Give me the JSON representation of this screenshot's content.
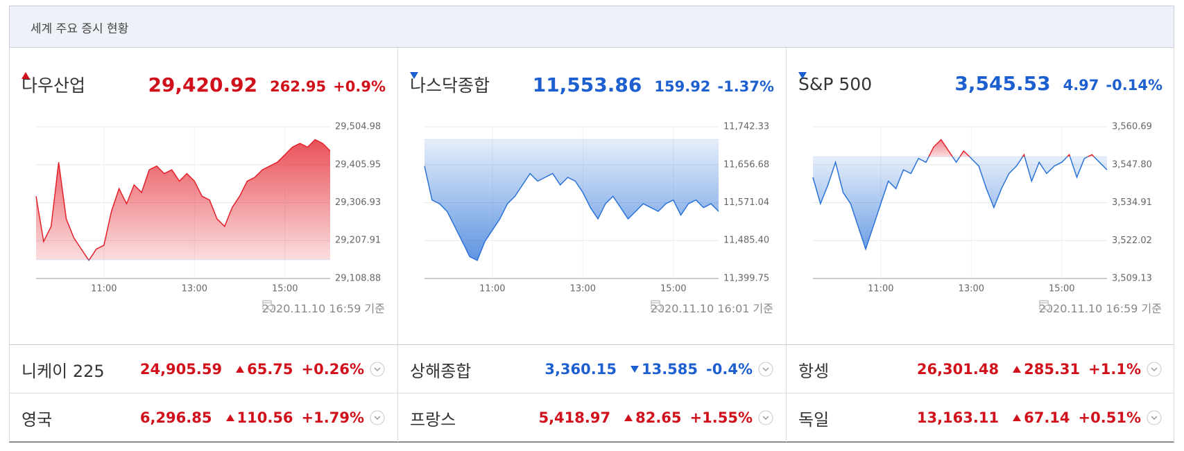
{
  "header": {
    "title": "세계 주요 증시 현황"
  },
  "panels": [
    {
      "name": "다우산업",
      "price": "29,420.92",
      "direction": "up",
      "change": "262.95",
      "percent": "+0.9%",
      "timestamp": "2020.11.10 16:59 기준"
    },
    {
      "name": "나스닥종합",
      "price": "11,553.86",
      "direction": "down",
      "change": "159.92",
      "percent": "-1.37%",
      "timestamp": "2020.11.10 16:01 기준"
    },
    {
      "name": "S&P 500",
      "price": "3,545.53",
      "direction": "down",
      "change": "4.97",
      "percent": "-0.14%",
      "timestamp": "2020.11.10 16:59 기준"
    }
  ],
  "chart_data": [
    {
      "type": "line",
      "grid": true,
      "color_up": "#e3202a",
      "color_down": "#2a72d8",
      "baseline": 29157.97,
      "x": [
        "09:30",
        "09:40",
        "09:50",
        "10:00",
        "10:10",
        "10:20",
        "10:30",
        "10:40",
        "10:50",
        "11:00",
        "11:10",
        "11:20",
        "11:30",
        "11:40",
        "11:50",
        "12:00",
        "12:10",
        "12:20",
        "12:30",
        "12:40",
        "12:50",
        "13:00",
        "13:10",
        "13:20",
        "13:30",
        "13:40",
        "13:50",
        "14:00",
        "14:10",
        "14:20",
        "14:30",
        "14:40",
        "14:50",
        "15:00",
        "15:10",
        "15:20",
        "15:30",
        "15:40",
        "15:50",
        "16:00"
      ],
      "values": [
        29323.7,
        29205.4,
        29244.9,
        29412.4,
        29264.6,
        29215.3,
        29185.7,
        29156.2,
        29185.7,
        29195.6,
        29284.3,
        29343.4,
        29304.0,
        29353.2,
        29333.5,
        29392.6,
        29402.5,
        29382.8,
        29392.6,
        29363.1,
        29382.8,
        29363.1,
        29323.7,
        29313.8,
        29264.6,
        29244.9,
        29294.1,
        29323.7,
        29363.1,
        29373.0,
        29392.6,
        29402.5,
        29412.4,
        29432.1,
        29451.8,
        29461.6,
        29451.8,
        29471.5,
        29461.6,
        29441.9
      ],
      "xlim": [
        "09:30",
        "16:00"
      ],
      "xticks": [
        "11:00",
        "13:00",
        "15:00"
      ],
      "ylim": [
        29108.88,
        29504.98
      ],
      "yticks": [
        {
          "value": 29108.88,
          "label": "29,108.88"
        },
        {
          "value": 29207.91,
          "label": "29,207.91"
        },
        {
          "value": 29306.93,
          "label": "29,306.93"
        },
        {
          "value": 29405.95,
          "label": "29,405.95"
        },
        {
          "value": 29504.98,
          "label": "29,504.98"
        }
      ]
    },
    {
      "type": "line",
      "grid": true,
      "color_up": "#e3202a",
      "color_down": "#2a72d8",
      "baseline": 11713.78,
      "x": [
        "09:30",
        "09:40",
        "09:50",
        "10:00",
        "10:10",
        "10:20",
        "10:30",
        "10:40",
        "10:50",
        "11:00",
        "11:10",
        "11:20",
        "11:30",
        "11:40",
        "11:50",
        "12:00",
        "12:10",
        "12:20",
        "12:30",
        "12:40",
        "12:50",
        "13:00",
        "13:10",
        "13:20",
        "13:30",
        "13:40",
        "13:50",
        "14:00",
        "14:10",
        "14:20",
        "14:30",
        "14:40",
        "14:50",
        "15:00",
        "15:10",
        "15:20",
        "15:30",
        "15:40",
        "15:50",
        "16:00"
      ],
      "values": [
        11653.7,
        11577.0,
        11568.5,
        11551.4,
        11517.4,
        11483.3,
        11449.2,
        11440.7,
        11483.3,
        11508.8,
        11534.4,
        11568.5,
        11585.5,
        11611.1,
        11636.7,
        11619.6,
        11628.1,
        11636.7,
        11611.1,
        11628.1,
        11619.6,
        11594.0,
        11560.0,
        11534.4,
        11568.5,
        11585.5,
        11560.0,
        11534.4,
        11551.4,
        11568.5,
        11560.0,
        11551.4,
        11568.5,
        11577.0,
        11542.9,
        11568.5,
        11577.0,
        11560.0,
        11568.5,
        11551.4
      ],
      "xlim": [
        "09:30",
        "16:00"
      ],
      "xticks": [
        "11:00",
        "13:00",
        "15:00"
      ],
      "ylim": [
        11399.75,
        11742.33
      ],
      "yticks": [
        {
          "value": 11399.75,
          "label": "11,399.75"
        },
        {
          "value": 11485.4,
          "label": "11,485.40"
        },
        {
          "value": 11571.04,
          "label": "11,571.04"
        },
        {
          "value": 11656.68,
          "label": "11,656.68"
        },
        {
          "value": 11742.33,
          "label": "11,742.33"
        }
      ]
    },
    {
      "type": "line",
      "grid": true,
      "color_up": "#e3202a",
      "color_down": "#2a72d8",
      "baseline": 3550.5,
      "x": [
        "09:30",
        "09:40",
        "09:50",
        "10:00",
        "10:10",
        "10:20",
        "10:30",
        "10:40",
        "10:50",
        "11:00",
        "11:10",
        "11:20",
        "11:30",
        "11:40",
        "11:50",
        "12:00",
        "12:10",
        "12:20",
        "12:30",
        "12:40",
        "12:50",
        "13:00",
        "13:10",
        "13:20",
        "13:30",
        "13:40",
        "13:50",
        "14:00",
        "14:10",
        "14:20",
        "14:30",
        "14:40",
        "14:50",
        "15:00",
        "15:10",
        "15:20",
        "15:30",
        "15:40",
        "15:50",
        "16:00"
      ],
      "values": [
        3543.5,
        3534.53,
        3540.94,
        3548.63,
        3538.37,
        3534.53,
        3526.83,
        3519.13,
        3526.83,
        3534.53,
        3542.22,
        3539.66,
        3546.07,
        3544.79,
        3549.92,
        3548.63,
        3553.76,
        3556.33,
        3552.48,
        3548.63,
        3552.48,
        3549.92,
        3547.35,
        3539.66,
        3533.24,
        3539.66,
        3544.79,
        3547.35,
        3551.2,
        3542.22,
        3548.63,
        3544.79,
        3547.35,
        3548.63,
        3551.2,
        3543.5,
        3549.92,
        3551.2,
        3548.63,
        3546.07
      ],
      "xlim": [
        "09:30",
        "16:00"
      ],
      "xticks": [
        "11:00",
        "13:00",
        "15:00"
      ],
      "ylim": [
        3509.13,
        3560.69
      ],
      "yticks": [
        {
          "value": 3509.13,
          "label": "3,509.13"
        },
        {
          "value": 3522.02,
          "label": "3,522.02"
        },
        {
          "value": 3534.91,
          "label": "3,534.91"
        },
        {
          "value": 3547.8,
          "label": "3,547.80"
        },
        {
          "value": 3560.69,
          "label": "3,560.69"
        }
      ]
    }
  ],
  "indices": [
    {
      "name": "니케이 225",
      "price": "24,905.59",
      "direction": "up",
      "change": "65.75",
      "percent": "+0.26%"
    },
    {
      "name": "상해종합",
      "price": "3,360.15",
      "direction": "down",
      "change": "13.585",
      "percent": "-0.4%"
    },
    {
      "name": "항셍",
      "price": "26,301.48",
      "direction": "up",
      "change": "285.31",
      "percent": "+1.1%"
    },
    {
      "name": "영국",
      "price": "6,296.85",
      "direction": "up",
      "change": "110.56",
      "percent": "+1.79%"
    },
    {
      "name": "프랑스",
      "price": "5,418.97",
      "direction": "up",
      "change": "82.65",
      "percent": "+1.55%"
    },
    {
      "name": "독일",
      "price": "13,163.11",
      "direction": "up",
      "change": "67.14",
      "percent": "+0.51%"
    }
  ]
}
